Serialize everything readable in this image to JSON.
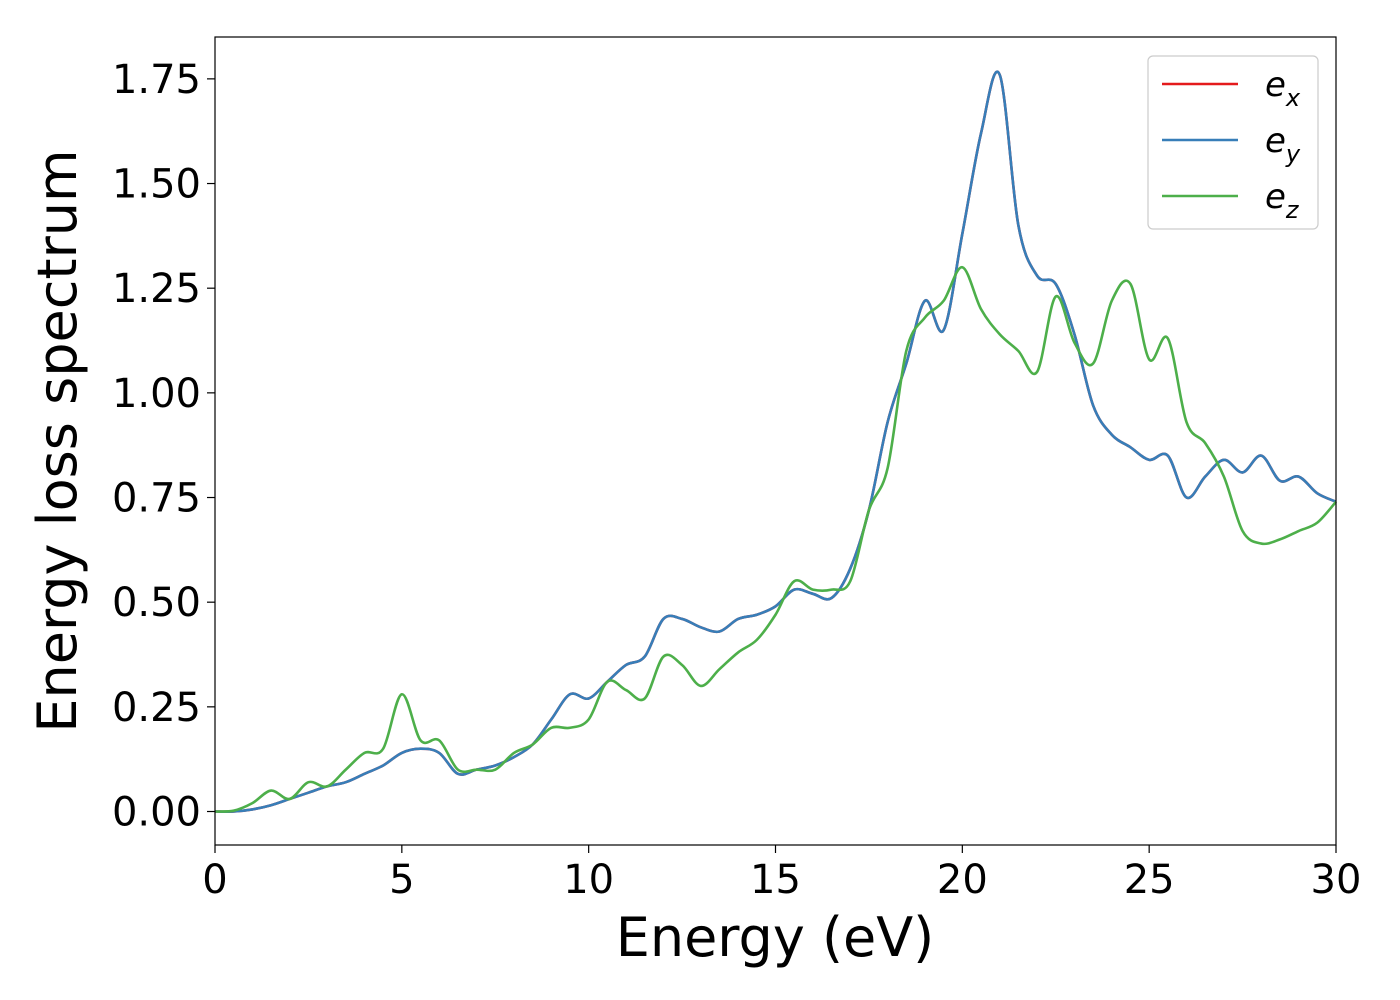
{
  "chart_data": {
    "type": "line",
    "xlabel": "Energy (eV)",
    "ylabel": "Energy loss spectrum",
    "xlim": [
      0,
      30
    ],
    "ylim": [
      -0.08,
      1.85
    ],
    "xticks": [
      0,
      5,
      10,
      15,
      20,
      25,
      30
    ],
    "xtick_labels": [
      "0",
      "5",
      "10",
      "15",
      "20",
      "25",
      "30"
    ],
    "yticks": [
      0.0,
      0.25,
      0.5,
      0.75,
      1.0,
      1.25,
      1.5,
      1.75
    ],
    "ytick_labels": [
      "0.00",
      "0.25",
      "0.50",
      "0.75",
      "1.00",
      "1.25",
      "1.50",
      "1.75"
    ],
    "grid": false,
    "legend_position": "top-right",
    "series": [
      {
        "name": "e",
        "sub": "x",
        "color": "#e41a1c",
        "x": [
          0,
          0.5,
          1,
          1.5,
          2,
          2.5,
          3,
          3.5,
          4,
          4.5,
          5,
          5.5,
          6,
          6.5,
          7,
          7.5,
          8,
          8.5,
          9,
          9.5,
          10,
          10.5,
          11,
          11.5,
          12,
          12.5,
          13,
          13.5,
          14,
          14.5,
          15,
          15.5,
          16,
          16.5,
          17,
          17.5,
          18,
          18.5,
          19,
          19.5,
          20,
          20.5,
          21,
          21.5,
          22,
          22.5,
          23,
          23.5,
          24,
          24.5,
          25,
          25.5,
          26,
          26.5,
          27,
          27.5,
          28,
          28.5,
          29,
          29.5,
          30
        ],
        "y": [
          0,
          0,
          0.005,
          0.015,
          0.03,
          0.045,
          0.06,
          0.07,
          0.09,
          0.11,
          0.14,
          0.15,
          0.14,
          0.09,
          0.1,
          0.11,
          0.13,
          0.16,
          0.22,
          0.28,
          0.27,
          0.31,
          0.35,
          0.37,
          0.46,
          0.46,
          0.44,
          0.43,
          0.46,
          0.47,
          0.49,
          0.53,
          0.52,
          0.51,
          0.58,
          0.72,
          0.93,
          1.07,
          1.22,
          1.15,
          1.38,
          1.62,
          1.76,
          1.4,
          1.28,
          1.26,
          1.14,
          0.97,
          0.9,
          0.87,
          0.84,
          0.85,
          0.75,
          0.8,
          0.84,
          0.81,
          0.85,
          0.79,
          0.8,
          0.76,
          0.74
        ]
      },
      {
        "name": "e",
        "sub": "y",
        "color": "#377eb8",
        "x": [
          0,
          0.5,
          1,
          1.5,
          2,
          2.5,
          3,
          3.5,
          4,
          4.5,
          5,
          5.5,
          6,
          6.5,
          7,
          7.5,
          8,
          8.5,
          9,
          9.5,
          10,
          10.5,
          11,
          11.5,
          12,
          12.5,
          13,
          13.5,
          14,
          14.5,
          15,
          15.5,
          16,
          16.5,
          17,
          17.5,
          18,
          18.5,
          19,
          19.5,
          20,
          20.5,
          21,
          21.5,
          22,
          22.5,
          23,
          23.5,
          24,
          24.5,
          25,
          25.5,
          26,
          26.5,
          27,
          27.5,
          28,
          28.5,
          29,
          29.5,
          30
        ],
        "y": [
          0,
          0,
          0.005,
          0.015,
          0.03,
          0.045,
          0.06,
          0.07,
          0.09,
          0.11,
          0.14,
          0.15,
          0.14,
          0.09,
          0.1,
          0.11,
          0.13,
          0.16,
          0.22,
          0.28,
          0.27,
          0.31,
          0.35,
          0.37,
          0.46,
          0.46,
          0.44,
          0.43,
          0.46,
          0.47,
          0.49,
          0.53,
          0.52,
          0.51,
          0.58,
          0.72,
          0.93,
          1.07,
          1.22,
          1.15,
          1.38,
          1.62,
          1.76,
          1.4,
          1.28,
          1.26,
          1.14,
          0.97,
          0.9,
          0.87,
          0.84,
          0.85,
          0.75,
          0.8,
          0.84,
          0.81,
          0.85,
          0.79,
          0.8,
          0.76,
          0.74
        ]
      },
      {
        "name": "e",
        "sub": "z",
        "color": "#4daf4a",
        "x": [
          0,
          0.5,
          1,
          1.5,
          2,
          2.5,
          3,
          3.5,
          4,
          4.5,
          5,
          5.5,
          6,
          6.5,
          7,
          7.5,
          8,
          8.5,
          9,
          9.5,
          10,
          10.5,
          11,
          11.5,
          12,
          12.5,
          13,
          13.5,
          14,
          14.5,
          15,
          15.5,
          16,
          16.5,
          17,
          17.5,
          18,
          18.5,
          19,
          19.5,
          20,
          20.5,
          21,
          21.5,
          22,
          22.5,
          23,
          23.5,
          24,
          24.5,
          25,
          25.5,
          26,
          26.5,
          27,
          27.5,
          28,
          28.5,
          29,
          29.5,
          30
        ],
        "y": [
          0,
          0.002,
          0.02,
          0.05,
          0.03,
          0.07,
          0.06,
          0.1,
          0.14,
          0.15,
          0.28,
          0.17,
          0.17,
          0.1,
          0.1,
          0.1,
          0.14,
          0.16,
          0.2,
          0.2,
          0.22,
          0.31,
          0.29,
          0.27,
          0.37,
          0.35,
          0.3,
          0.34,
          0.38,
          0.41,
          0.47,
          0.55,
          0.53,
          0.53,
          0.55,
          0.72,
          0.82,
          1.1,
          1.18,
          1.22,
          1.3,
          1.2,
          1.14,
          1.1,
          1.05,
          1.23,
          1.12,
          1.07,
          1.22,
          1.26,
          1.08,
          1.13,
          0.93,
          0.88,
          0.8,
          0.67,
          0.64,
          0.65,
          0.67,
          0.69,
          0.74
        ]
      }
    ]
  }
}
